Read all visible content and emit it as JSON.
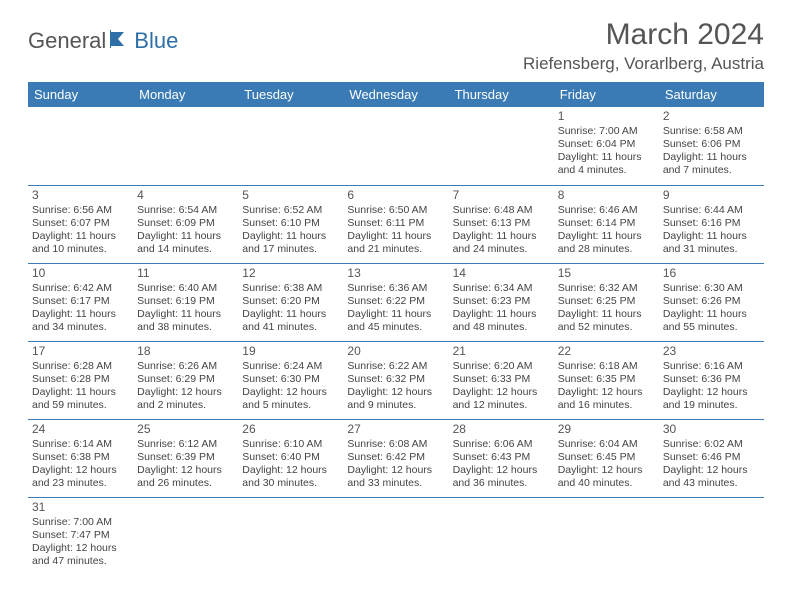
{
  "logo": {
    "text1": "General",
    "text2": "Blue"
  },
  "title": "March 2024",
  "location": "Riefensberg, Vorarlberg, Austria",
  "colors": {
    "header_bg": "#3a7ab5",
    "header_text": "#ffffff",
    "accent": "#2f6fa7",
    "body_text": "#444444",
    "border": "#3a7ab5"
  },
  "day_headers": [
    "Sunday",
    "Monday",
    "Tuesday",
    "Wednesday",
    "Thursday",
    "Friday",
    "Saturday"
  ],
  "weeks": [
    [
      null,
      null,
      null,
      null,
      null,
      {
        "n": "1",
        "sr": "Sunrise: 7:00 AM",
        "ss": "Sunset: 6:04 PM",
        "dl1": "Daylight: 11 hours",
        "dl2": "and 4 minutes."
      },
      {
        "n": "2",
        "sr": "Sunrise: 6:58 AM",
        "ss": "Sunset: 6:06 PM",
        "dl1": "Daylight: 11 hours",
        "dl2": "and 7 minutes."
      }
    ],
    [
      {
        "n": "3",
        "sr": "Sunrise: 6:56 AM",
        "ss": "Sunset: 6:07 PM",
        "dl1": "Daylight: 11 hours",
        "dl2": "and 10 minutes."
      },
      {
        "n": "4",
        "sr": "Sunrise: 6:54 AM",
        "ss": "Sunset: 6:09 PM",
        "dl1": "Daylight: 11 hours",
        "dl2": "and 14 minutes."
      },
      {
        "n": "5",
        "sr": "Sunrise: 6:52 AM",
        "ss": "Sunset: 6:10 PM",
        "dl1": "Daylight: 11 hours",
        "dl2": "and 17 minutes."
      },
      {
        "n": "6",
        "sr": "Sunrise: 6:50 AM",
        "ss": "Sunset: 6:11 PM",
        "dl1": "Daylight: 11 hours",
        "dl2": "and 21 minutes."
      },
      {
        "n": "7",
        "sr": "Sunrise: 6:48 AM",
        "ss": "Sunset: 6:13 PM",
        "dl1": "Daylight: 11 hours",
        "dl2": "and 24 minutes."
      },
      {
        "n": "8",
        "sr": "Sunrise: 6:46 AM",
        "ss": "Sunset: 6:14 PM",
        "dl1": "Daylight: 11 hours",
        "dl2": "and 28 minutes."
      },
      {
        "n": "9",
        "sr": "Sunrise: 6:44 AM",
        "ss": "Sunset: 6:16 PM",
        "dl1": "Daylight: 11 hours",
        "dl2": "and 31 minutes."
      }
    ],
    [
      {
        "n": "10",
        "sr": "Sunrise: 6:42 AM",
        "ss": "Sunset: 6:17 PM",
        "dl1": "Daylight: 11 hours",
        "dl2": "and 34 minutes."
      },
      {
        "n": "11",
        "sr": "Sunrise: 6:40 AM",
        "ss": "Sunset: 6:19 PM",
        "dl1": "Daylight: 11 hours",
        "dl2": "and 38 minutes."
      },
      {
        "n": "12",
        "sr": "Sunrise: 6:38 AM",
        "ss": "Sunset: 6:20 PM",
        "dl1": "Daylight: 11 hours",
        "dl2": "and 41 minutes."
      },
      {
        "n": "13",
        "sr": "Sunrise: 6:36 AM",
        "ss": "Sunset: 6:22 PM",
        "dl1": "Daylight: 11 hours",
        "dl2": "and 45 minutes."
      },
      {
        "n": "14",
        "sr": "Sunrise: 6:34 AM",
        "ss": "Sunset: 6:23 PM",
        "dl1": "Daylight: 11 hours",
        "dl2": "and 48 minutes."
      },
      {
        "n": "15",
        "sr": "Sunrise: 6:32 AM",
        "ss": "Sunset: 6:25 PM",
        "dl1": "Daylight: 11 hours",
        "dl2": "and 52 minutes."
      },
      {
        "n": "16",
        "sr": "Sunrise: 6:30 AM",
        "ss": "Sunset: 6:26 PM",
        "dl1": "Daylight: 11 hours",
        "dl2": "and 55 minutes."
      }
    ],
    [
      {
        "n": "17",
        "sr": "Sunrise: 6:28 AM",
        "ss": "Sunset: 6:28 PM",
        "dl1": "Daylight: 11 hours",
        "dl2": "and 59 minutes."
      },
      {
        "n": "18",
        "sr": "Sunrise: 6:26 AM",
        "ss": "Sunset: 6:29 PM",
        "dl1": "Daylight: 12 hours",
        "dl2": "and 2 minutes."
      },
      {
        "n": "19",
        "sr": "Sunrise: 6:24 AM",
        "ss": "Sunset: 6:30 PM",
        "dl1": "Daylight: 12 hours",
        "dl2": "and 5 minutes."
      },
      {
        "n": "20",
        "sr": "Sunrise: 6:22 AM",
        "ss": "Sunset: 6:32 PM",
        "dl1": "Daylight: 12 hours",
        "dl2": "and 9 minutes."
      },
      {
        "n": "21",
        "sr": "Sunrise: 6:20 AM",
        "ss": "Sunset: 6:33 PM",
        "dl1": "Daylight: 12 hours",
        "dl2": "and 12 minutes."
      },
      {
        "n": "22",
        "sr": "Sunrise: 6:18 AM",
        "ss": "Sunset: 6:35 PM",
        "dl1": "Daylight: 12 hours",
        "dl2": "and 16 minutes."
      },
      {
        "n": "23",
        "sr": "Sunrise: 6:16 AM",
        "ss": "Sunset: 6:36 PM",
        "dl1": "Daylight: 12 hours",
        "dl2": "and 19 minutes."
      }
    ],
    [
      {
        "n": "24",
        "sr": "Sunrise: 6:14 AM",
        "ss": "Sunset: 6:38 PM",
        "dl1": "Daylight: 12 hours",
        "dl2": "and 23 minutes."
      },
      {
        "n": "25",
        "sr": "Sunrise: 6:12 AM",
        "ss": "Sunset: 6:39 PM",
        "dl1": "Daylight: 12 hours",
        "dl2": "and 26 minutes."
      },
      {
        "n": "26",
        "sr": "Sunrise: 6:10 AM",
        "ss": "Sunset: 6:40 PM",
        "dl1": "Daylight: 12 hours",
        "dl2": "and 30 minutes."
      },
      {
        "n": "27",
        "sr": "Sunrise: 6:08 AM",
        "ss": "Sunset: 6:42 PM",
        "dl1": "Daylight: 12 hours",
        "dl2": "and 33 minutes."
      },
      {
        "n": "28",
        "sr": "Sunrise: 6:06 AM",
        "ss": "Sunset: 6:43 PM",
        "dl1": "Daylight: 12 hours",
        "dl2": "and 36 minutes."
      },
      {
        "n": "29",
        "sr": "Sunrise: 6:04 AM",
        "ss": "Sunset: 6:45 PM",
        "dl1": "Daylight: 12 hours",
        "dl2": "and 40 minutes."
      },
      {
        "n": "30",
        "sr": "Sunrise: 6:02 AM",
        "ss": "Sunset: 6:46 PM",
        "dl1": "Daylight: 12 hours",
        "dl2": "and 43 minutes."
      }
    ],
    [
      {
        "n": "31",
        "sr": "Sunrise: 7:00 AM",
        "ss": "Sunset: 7:47 PM",
        "dl1": "Daylight: 12 hours",
        "dl2": "and 47 minutes."
      },
      null,
      null,
      null,
      null,
      null,
      null
    ]
  ]
}
